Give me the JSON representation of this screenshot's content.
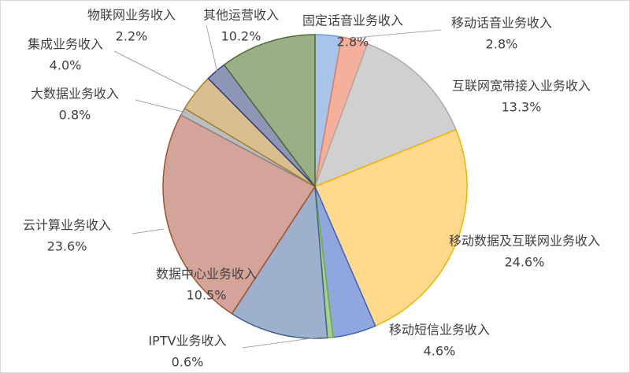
{
  "chart_data": {
    "type": "pie",
    "categories": [
      "固定话音业务收入",
      "移动话音业务收入",
      "互联网宽带接入业务收入",
      "移动数据及互联网业务收入",
      "移动短信业务收入",
      "IPTV业务收入",
      "数据中心业务收入",
      "云计算业务收入",
      "大数据业务收入",
      "集成业务收入",
      "物联网业务收入",
      "其他运营收入"
    ],
    "values": [
      2.8,
      2.8,
      13.3,
      24.6,
      4.6,
      0.6,
      10.5,
      23.6,
      0.8,
      4.0,
      2.2,
      10.2
    ],
    "value_labels": [
      "2.8%",
      "2.8%",
      "13.3%",
      "24.6%",
      "4.6%",
      "0.6%",
      "10.5%",
      "23.6%",
      "0.8%",
      "4.0%",
      "2.2%",
      "10.2%"
    ],
    "colors": [
      "#a9c4eb",
      "#f4b09a",
      "#d0d0d0",
      "#ffd98c",
      "#8fa6df",
      "#a8d08d",
      "#9fb0cc",
      "#d4a49b",
      "#bdbdbd",
      "#d9bf8f",
      "#8f96b5",
      "#9aae88"
    ]
  }
}
